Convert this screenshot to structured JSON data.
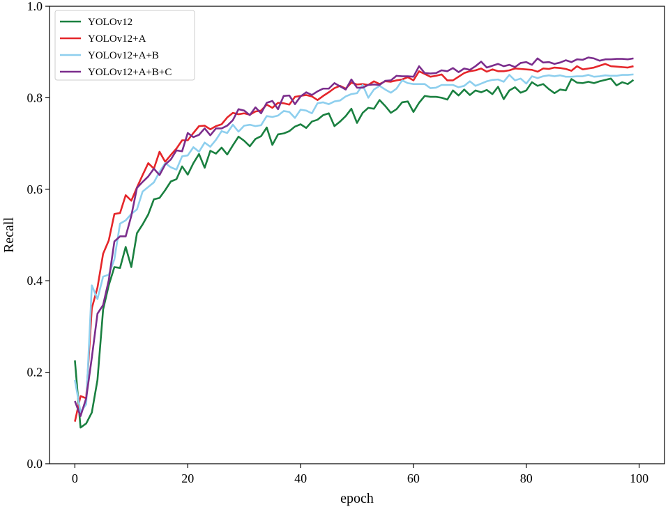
{
  "chart_data": {
    "type": "line",
    "title": "",
    "xlabel": "epoch",
    "ylabel": "Recall",
    "xlim": [
      -4.5,
      104.5
    ],
    "ylim": [
      0.0,
      1.0
    ],
    "xticks": [
      0,
      20,
      40,
      60,
      80,
      100
    ],
    "yticks": [
      0.0,
      0.2,
      0.4,
      0.6,
      0.8,
      1.0
    ],
    "ytick_labels": [
      "0.0",
      "0.2",
      "0.4",
      "0.6",
      "0.8",
      "1.0"
    ],
    "grid": false,
    "legend_position": "top-left",
    "x": [
      0,
      1,
      2,
      3,
      4,
      5,
      6,
      7,
      8,
      9,
      10,
      11,
      12,
      13,
      14,
      15,
      16,
      17,
      18,
      19,
      20,
      21,
      22,
      23,
      24,
      25,
      26,
      27,
      28,
      29,
      30,
      31,
      32,
      33,
      34,
      35,
      36,
      37,
      38,
      39,
      40,
      41,
      42,
      43,
      44,
      45,
      46,
      47,
      48,
      49,
      50,
      51,
      52,
      53,
      54,
      55,
      56,
      57,
      58,
      59,
      60,
      61,
      62,
      63,
      64,
      65,
      66,
      67,
      68,
      69,
      70,
      71,
      72,
      73,
      74,
      75,
      76,
      77,
      78,
      79,
      80,
      81,
      82,
      83,
      84,
      85,
      86,
      87,
      88,
      89,
      90,
      91,
      92,
      93,
      94,
      95,
      96,
      97,
      98,
      99
    ],
    "series": [
      {
        "name": "YOLOv12",
        "color": "#1a8040",
        "values": [
          0.226,
          0.079,
          0.088,
          0.112,
          0.183,
          0.337,
          0.39,
          0.43,
          0.428,
          0.474,
          0.43,
          0.504,
          0.523,
          0.545,
          0.578,
          0.581,
          0.598,
          0.617,
          0.622,
          0.65,
          0.632,
          0.657,
          0.677,
          0.647,
          0.684,
          0.678,
          0.691,
          0.676,
          0.696,
          0.715,
          0.706,
          0.694,
          0.71,
          0.716,
          0.735,
          0.697,
          0.72,
          0.722,
          0.727,
          0.737,
          0.742,
          0.734,
          0.748,
          0.752,
          0.762,
          0.766,
          0.738,
          0.748,
          0.76,
          0.776,
          0.745,
          0.767,
          0.778,
          0.776,
          0.795,
          0.782,
          0.767,
          0.775,
          0.79,
          0.792,
          0.769,
          0.789,
          0.804,
          0.802,
          0.802,
          0.8,
          0.796,
          0.816,
          0.805,
          0.818,
          0.806,
          0.816,
          0.812,
          0.817,
          0.808,
          0.824,
          0.797,
          0.816,
          0.823,
          0.811,
          0.816,
          0.834,
          0.826,
          0.83,
          0.819,
          0.81,
          0.818,
          0.816,
          0.841,
          0.833,
          0.832,
          0.835,
          0.832,
          0.836,
          0.839,
          0.842,
          0.827,
          0.834,
          0.83,
          0.839
        ]
      },
      {
        "name": "YOLOv12+A",
        "color": "#e5262a",
        "values": [
          0.092,
          0.148,
          0.143,
          0.34,
          0.385,
          0.459,
          0.488,
          0.546,
          0.548,
          0.587,
          0.575,
          0.604,
          0.631,
          0.657,
          0.645,
          0.682,
          0.66,
          0.675,
          0.689,
          0.707,
          0.707,
          0.723,
          0.738,
          0.739,
          0.731,
          0.738,
          0.742,
          0.757,
          0.767,
          0.764,
          0.766,
          0.763,
          0.77,
          0.772,
          0.785,
          0.778,
          0.789,
          0.788,
          0.785,
          0.802,
          0.804,
          0.806,
          0.803,
          0.795,
          0.804,
          0.812,
          0.821,
          0.826,
          0.82,
          0.833,
          0.829,
          0.83,
          0.828,
          0.836,
          0.83,
          0.836,
          0.835,
          0.838,
          0.84,
          0.845,
          0.838,
          0.858,
          0.852,
          0.846,
          0.848,
          0.851,
          0.838,
          0.838,
          0.846,
          0.854,
          0.858,
          0.86,
          0.864,
          0.857,
          0.862,
          0.858,
          0.858,
          0.86,
          0.864,
          0.863,
          0.862,
          0.861,
          0.857,
          0.864,
          0.863,
          0.866,
          0.865,
          0.863,
          0.859,
          0.869,
          0.862,
          0.864,
          0.866,
          0.87,
          0.874,
          0.869,
          0.868,
          0.867,
          0.866,
          0.869
        ]
      },
      {
        "name": "YOLOv12+A+B",
        "color": "#8ecfee",
        "values": [
          0.183,
          0.113,
          0.13,
          0.39,
          0.36,
          0.409,
          0.413,
          0.447,
          0.525,
          0.532,
          0.546,
          0.556,
          0.595,
          0.605,
          0.615,
          0.638,
          0.657,
          0.648,
          0.643,
          0.672,
          0.674,
          0.692,
          0.682,
          0.702,
          0.693,
          0.708,
          0.727,
          0.723,
          0.741,
          0.726,
          0.739,
          0.741,
          0.738,
          0.74,
          0.76,
          0.758,
          0.761,
          0.771,
          0.769,
          0.756,
          0.774,
          0.772,
          0.766,
          0.788,
          0.79,
          0.786,
          0.792,
          0.794,
          0.803,
          0.808,
          0.81,
          0.828,
          0.8,
          0.818,
          0.826,
          0.818,
          0.811,
          0.82,
          0.838,
          0.832,
          0.83,
          0.83,
          0.83,
          0.821,
          0.822,
          0.828,
          0.828,
          0.828,
          0.823,
          0.826,
          0.836,
          0.826,
          0.831,
          0.836,
          0.839,
          0.84,
          0.835,
          0.85,
          0.838,
          0.842,
          0.831,
          0.847,
          0.843,
          0.847,
          0.849,
          0.847,
          0.849,
          0.846,
          0.846,
          0.847,
          0.847,
          0.85,
          0.846,
          0.847,
          0.849,
          0.848,
          0.848,
          0.85,
          0.85,
          0.851
        ]
      },
      {
        "name": "YOLOv12+A+B+C",
        "color": "#7b2d8c",
        "values": [
          0.137,
          0.104,
          0.143,
          0.232,
          0.328,
          0.347,
          0.401,
          0.486,
          0.497,
          0.497,
          0.542,
          0.603,
          0.616,
          0.628,
          0.645,
          0.631,
          0.654,
          0.665,
          0.685,
          0.683,
          0.723,
          0.714,
          0.719,
          0.733,
          0.718,
          0.733,
          0.733,
          0.739,
          0.751,
          0.775,
          0.772,
          0.762,
          0.779,
          0.766,
          0.789,
          0.793,
          0.775,
          0.804,
          0.805,
          0.786,
          0.803,
          0.812,
          0.806,
          0.814,
          0.82,
          0.82,
          0.832,
          0.825,
          0.818,
          0.84,
          0.822,
          0.822,
          0.828,
          0.829,
          0.828,
          0.837,
          0.838,
          0.848,
          0.847,
          0.847,
          0.846,
          0.869,
          0.854,
          0.853,
          0.854,
          0.86,
          0.858,
          0.865,
          0.856,
          0.864,
          0.861,
          0.869,
          0.879,
          0.866,
          0.87,
          0.874,
          0.869,
          0.872,
          0.867,
          0.876,
          0.878,
          0.872,
          0.886,
          0.877,
          0.878,
          0.874,
          0.877,
          0.882,
          0.878,
          0.884,
          0.883,
          0.888,
          0.886,
          0.881,
          0.884,
          0.884,
          0.885,
          0.885,
          0.884,
          0.886
        ]
      }
    ]
  }
}
